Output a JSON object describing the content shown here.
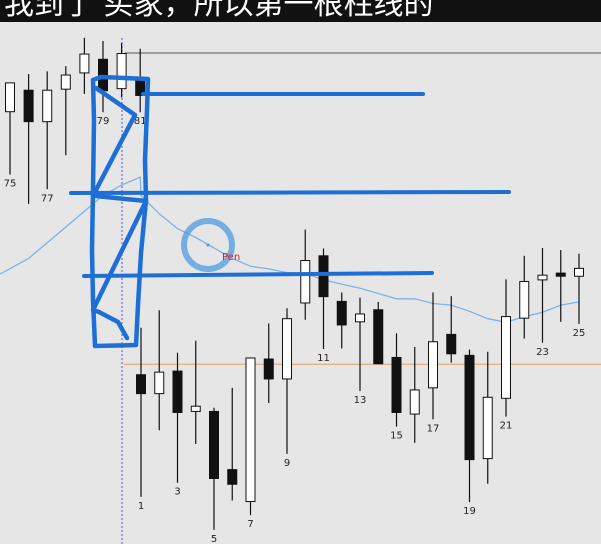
{
  "caption": "我到了 买家，所以第一根柱线的",
  "cursor_label": "Pen",
  "colors": {
    "background": "#e6e6e6",
    "candle_outline": "#111111",
    "bull_fill": "#ffffff",
    "bear_fill": "#111111",
    "ma_line": "#7fb2e5",
    "hline": "#e0a060",
    "vline": "#5555cc",
    "pen": "#1d6fd6",
    "cursor": "#4d9be0",
    "cursor_label": "#e02020"
  },
  "chart_data": {
    "type": "candlestick",
    "yrange": [
      0,
      100
    ],
    "candles": [
      {
        "o": 82.5,
        "h": 88.0,
        "l": 70.5,
        "c": 88.0,
        "label": "75"
      },
      {
        "o": 86.6,
        "h": 89.7,
        "l": 64.9,
        "c": 80.6,
        "label": ""
      },
      {
        "o": 80.6,
        "h": 90.2,
        "l": 67.7,
        "c": 86.6,
        "label": "77"
      },
      {
        "o": 86.8,
        "h": 91.2,
        "l": 74.2,
        "c": 89.5,
        "label": ""
      },
      {
        "o": 89.9,
        "h": 96.6,
        "l": 85.9,
        "c": 93.5,
        "label": ""
      },
      {
        "o": 92.5,
        "h": 96.0,
        "l": 82.4,
        "c": 86.5,
        "label": "79"
      },
      {
        "o": 86.9,
        "h": 95.6,
        "l": 85.2,
        "c": 93.6,
        "label": ""
      },
      {
        "o": 88.5,
        "h": 94.5,
        "l": 82.4,
        "c": 85.6,
        "label": "81"
      },
      {
        "o": 32.3,
        "h": 41.3,
        "l": 9.0,
        "c": 28.7,
        "label": "1"
      },
      {
        "o": 28.7,
        "h": 44.6,
        "l": 21.7,
        "c": 32.8,
        "label": ""
      },
      {
        "o": 33.0,
        "h": 36.5,
        "l": 11.7,
        "c": 25.1,
        "label": "3"
      },
      {
        "o": 25.3,
        "h": 38.8,
        "l": 19.1,
        "c": 26.3,
        "label": ""
      },
      {
        "o": 25.3,
        "h": 26.0,
        "l": 2.7,
        "c": 12.5,
        "label": "5"
      },
      {
        "o": 14.2,
        "h": 29.8,
        "l": 8.3,
        "c": 11.4,
        "label": ""
      },
      {
        "o": 8.1,
        "h": 35.5,
        "l": 5.5,
        "c": 35.5,
        "label": "7"
      },
      {
        "o": 35.3,
        "h": 42.1,
        "l": 26.9,
        "c": 31.5,
        "label": ""
      },
      {
        "o": 31.5,
        "h": 45.0,
        "l": 17.2,
        "c": 43.0,
        "label": "9"
      },
      {
        "o": 46.0,
        "h": 60.0,
        "l": 42.8,
        "c": 54.1,
        "label": ""
      },
      {
        "o": 55.0,
        "h": 56.4,
        "l": 37.2,
        "c": 47.2,
        "label": "11"
      },
      {
        "o": 46.3,
        "h": 48.0,
        "l": 37.3,
        "c": 41.8,
        "label": ""
      },
      {
        "o": 42.4,
        "h": 47.0,
        "l": 29.2,
        "c": 43.9,
        "label": "13"
      },
      {
        "o": 44.7,
        "h": 46.2,
        "l": 35.1,
        "c": 34.4,
        "label": ""
      },
      {
        "o": 35.6,
        "h": 40.2,
        "l": 22.4,
        "c": 25.1,
        "label": "15"
      },
      {
        "o": 24.8,
        "h": 37.6,
        "l": 19.3,
        "c": 29.4,
        "label": ""
      },
      {
        "o": 29.8,
        "h": 48.0,
        "l": 23.8,
        "c": 38.6,
        "label": "17"
      },
      {
        "o": 40.0,
        "h": 47.3,
        "l": 34.6,
        "c": 36.3,
        "label": ""
      },
      {
        "o": 36.0,
        "h": 37.1,
        "l": 8.0,
        "c": 16.1,
        "label": "19"
      },
      {
        "o": 16.3,
        "h": 36.7,
        "l": 11.5,
        "c": 28.0,
        "label": ""
      },
      {
        "o": 27.8,
        "h": 50.5,
        "l": 24.3,
        "c": 43.4,
        "label": "21"
      },
      {
        "o": 43.1,
        "h": 55.0,
        "l": 39.2,
        "c": 50.1,
        "label": ""
      },
      {
        "o": 50.4,
        "h": 56.5,
        "l": 38.4,
        "c": 51.3,
        "label": "23"
      },
      {
        "o": 51.7,
        "h": 56.1,
        "l": 42.4,
        "c": 51.1,
        "label": ""
      },
      {
        "o": 51.1,
        "h": 55.4,
        "l": 42.0,
        "c": 52.6,
        "label": "25"
      }
    ],
    "ma": [
      [
        0,
        51.5
      ],
      [
        1,
        54.5
      ],
      [
        2,
        57.5
      ],
      [
        3,
        60.5
      ],
      [
        4,
        63.5
      ],
      [
        5,
        66.5
      ],
      [
        6,
        68.5
      ],
      [
        7,
        70.0
      ],
      [
        8,
        66.5
      ],
      [
        9,
        63.0
      ],
      [
        10,
        60.2
      ],
      [
        11,
        58.5
      ],
      [
        12,
        56.5
      ],
      [
        13,
        54.5
      ],
      [
        14,
        53.0
      ],
      [
        15,
        52.5
      ],
      [
        16,
        51.8
      ],
      [
        17,
        51.6
      ],
      [
        18,
        50.4
      ],
      [
        19,
        49.6
      ],
      [
        20,
        48.8
      ],
      [
        21,
        47.8
      ],
      [
        22,
        46.8
      ],
      [
        23,
        46.8
      ],
      [
        24,
        45.9
      ],
      [
        25,
        45.6
      ],
      [
        26,
        44.4
      ],
      [
        27,
        43.0
      ],
      [
        28,
        42.3
      ],
      [
        29,
        43.4
      ],
      [
        30,
        44.2
      ],
      [
        31,
        45.6
      ],
      [
        32,
        46.2
      ]
    ],
    "hline_value": 34.3
  }
}
